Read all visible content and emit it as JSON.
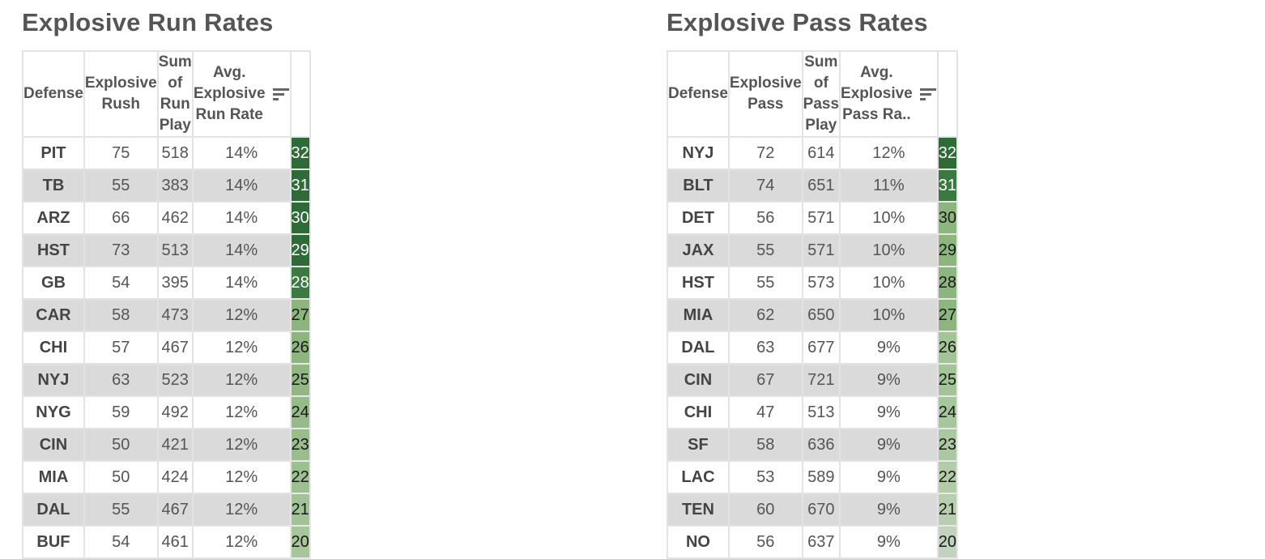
{
  "run": {
    "title": "Explosive Run Rates",
    "headers": {
      "defense": "Defense",
      "explosive": [
        "Explosive",
        "Rush"
      ],
      "sum": [
        "Sum of Run",
        "Play"
      ],
      "avg": [
        "Avg.",
        "Explosive",
        "Run Rate"
      ],
      "rank": ""
    },
    "rows": [
      {
        "team": "PIT",
        "explosive": "75",
        "sum": "518",
        "rate": "14%",
        "rank": "32",
        "color": "#2e6b37",
        "text": "#ffffff"
      },
      {
        "team": "TB",
        "explosive": "55",
        "sum": "383",
        "rate": "14%",
        "rank": "31",
        "color": "#2e6b37",
        "text": "#ffffff"
      },
      {
        "team": "ARZ",
        "explosive": "66",
        "sum": "462",
        "rate": "14%",
        "rank": "30",
        "color": "#2e6b37",
        "text": "#ffffff"
      },
      {
        "team": "HST",
        "explosive": "73",
        "sum": "513",
        "rate": "14%",
        "rank": "29",
        "color": "#2e6b37",
        "text": "#ffffff"
      },
      {
        "team": "GB",
        "explosive": "54",
        "sum": "395",
        "rate": "14%",
        "rank": "28",
        "color": "#3b7a40",
        "text": "#ffffff"
      },
      {
        "team": "CAR",
        "explosive": "58",
        "sum": "473",
        "rate": "12%",
        "rank": "27",
        "color": "#8db67f",
        "text": "#1a1a1a"
      },
      {
        "team": "CHI",
        "explosive": "57",
        "sum": "467",
        "rate": "12%",
        "rank": "26",
        "color": "#8db67f",
        "text": "#1a1a1a"
      },
      {
        "team": "NYJ",
        "explosive": "63",
        "sum": "523",
        "rate": "12%",
        "rank": "25",
        "color": "#91b883",
        "text": "#1a1a1a"
      },
      {
        "team": "NYG",
        "explosive": "59",
        "sum": "492",
        "rate": "12%",
        "rank": "24",
        "color": "#95bb88",
        "text": "#1a1a1a"
      },
      {
        "team": "CIN",
        "explosive": "50",
        "sum": "421",
        "rate": "12%",
        "rank": "23",
        "color": "#99be8c",
        "text": "#1a1a1a"
      },
      {
        "team": "MIA",
        "explosive": "50",
        "sum": "424",
        "rate": "12%",
        "rank": "22",
        "color": "#9dc090",
        "text": "#1a1a1a"
      },
      {
        "team": "DAL",
        "explosive": "55",
        "sum": "467",
        "rate": "12%",
        "rank": "21",
        "color": "#a1c395",
        "text": "#1a1a1a"
      },
      {
        "team": "BUF",
        "explosive": "54",
        "sum": "461",
        "rate": "12%",
        "rank": "20",
        "color": "#a6c69b",
        "text": "#1a1a1a"
      }
    ]
  },
  "pass": {
    "title": "Explosive Pass Rates",
    "headers": {
      "defense": "Defense",
      "explosive": [
        "Explosive",
        "Pass"
      ],
      "sum": [
        "Sum of Pass",
        "Play"
      ],
      "avg": [
        "Avg.",
        "Explosive",
        "Pass Ra.."
      ],
      "rank": ""
    },
    "rows": [
      {
        "team": "NYJ",
        "explosive": "72",
        "sum": "614",
        "rate": "12%",
        "rank": "32",
        "color": "#2e6b37",
        "text": "#ffffff"
      },
      {
        "team": "BLT",
        "explosive": "74",
        "sum": "651",
        "rate": "11%",
        "rank": "31",
        "color": "#3a7940",
        "text": "#ffffff"
      },
      {
        "team": "DET",
        "explosive": "56",
        "sum": "571",
        "rate": "10%",
        "rank": "30",
        "color": "#8db67f",
        "text": "#1a1a1a"
      },
      {
        "team": "JAX",
        "explosive": "55",
        "sum": "571",
        "rate": "10%",
        "rank": "29",
        "color": "#8db67f",
        "text": "#1a1a1a"
      },
      {
        "team": "HST",
        "explosive": "55",
        "sum": "573",
        "rate": "10%",
        "rank": "28",
        "color": "#8db67f",
        "text": "#1a1a1a"
      },
      {
        "team": "MIA",
        "explosive": "62",
        "sum": "650",
        "rate": "10%",
        "rank": "27",
        "color": "#8db67f",
        "text": "#1a1a1a"
      },
      {
        "team": "DAL",
        "explosive": "63",
        "sum": "677",
        "rate": "9%",
        "rank": "26",
        "color": "#a2c496",
        "text": "#1a1a1a"
      },
      {
        "team": "CIN",
        "explosive": "67",
        "sum": "721",
        "rate": "9%",
        "rank": "25",
        "color": "#a2c496",
        "text": "#1a1a1a"
      },
      {
        "team": "CHI",
        "explosive": "47",
        "sum": "513",
        "rate": "9%",
        "rank": "24",
        "color": "#a6c69b",
        "text": "#1a1a1a"
      },
      {
        "team": "SF",
        "explosive": "58",
        "sum": "636",
        "rate": "9%",
        "rank": "23",
        "color": "#abc9a0",
        "text": "#1a1a1a"
      },
      {
        "team": "LAC",
        "explosive": "53",
        "sum": "589",
        "rate": "9%",
        "rank": "22",
        "color": "#b2cca8",
        "text": "#1a1a1a"
      },
      {
        "team": "TEN",
        "explosive": "60",
        "sum": "670",
        "rate": "9%",
        "rank": "21",
        "color": "#b7ceaf",
        "text": "#1a1a1a"
      },
      {
        "team": "NO",
        "explosive": "56",
        "sum": "637",
        "rate": "9%",
        "rank": "20",
        "color": "#c3d2bf",
        "text": "#1a1a1a"
      }
    ]
  }
}
